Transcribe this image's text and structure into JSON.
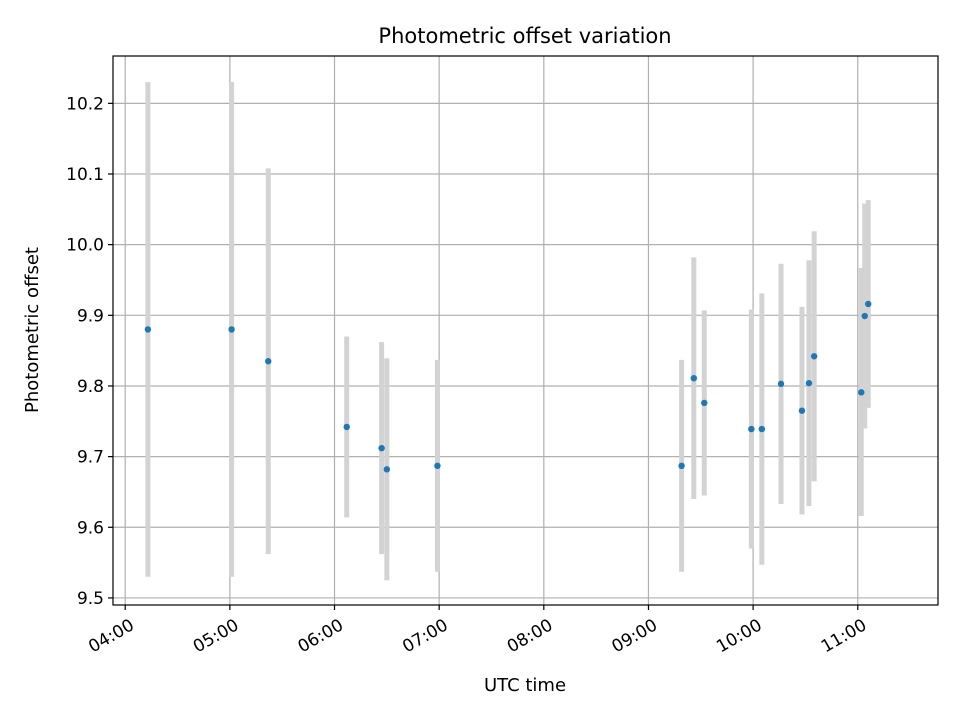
{
  "chart_data": {
    "type": "scatter",
    "title": "Photometric offset variation",
    "xlabel": "UTC time",
    "ylabel": "Photometric offset",
    "x_ticks": [
      "04:00",
      "05:00",
      "06:00",
      "07:00",
      "08:00",
      "09:00",
      "10:00",
      "11:00"
    ],
    "y_ticks": [
      "9.5",
      "9.6",
      "9.7",
      "9.8",
      "9.9",
      "10.0",
      "10.1",
      "10.2"
    ],
    "xlim": [
      "03:53",
      "11:46"
    ],
    "ylim": [
      9.49,
      10.267
    ],
    "grid": true,
    "marker_color": "#1f77b4",
    "errorbar_color": "#d3d3d3",
    "points": [
      {
        "time": "04:13",
        "y": 9.88,
        "yerr_low": 9.53,
        "yerr_high": 10.23
      },
      {
        "time": "05:01",
        "y": 9.88,
        "yerr_low": 9.53,
        "yerr_high": 10.23
      },
      {
        "time": "05:22",
        "y": 9.835,
        "yerr_low": 9.562,
        "yerr_high": 10.108
      },
      {
        "time": "06:07",
        "y": 9.742,
        "yerr_low": 9.614,
        "yerr_high": 9.87
      },
      {
        "time": "06:27",
        "y": 9.712,
        "yerr_low": 9.562,
        "yerr_high": 9.862
      },
      {
        "time": "06:30",
        "y": 9.682,
        "yerr_low": 9.525,
        "yerr_high": 9.839
      },
      {
        "time": "06:59",
        "y": 9.687,
        "yerr_low": 9.537,
        "yerr_high": 9.837
      },
      {
        "time": "09:19",
        "y": 9.687,
        "yerr_low": 9.537,
        "yerr_high": 9.837
      },
      {
        "time": "09:26",
        "y": 9.811,
        "yerr_low": 9.64,
        "yerr_high": 9.982
      },
      {
        "time": "09:32",
        "y": 9.776,
        "yerr_low": 9.645,
        "yerr_high": 9.907
      },
      {
        "time": "09:59",
        "y": 9.739,
        "yerr_low": 9.57,
        "yerr_high": 9.908
      },
      {
        "time": "10:05",
        "y": 9.739,
        "yerr_low": 9.547,
        "yerr_high": 9.931
      },
      {
        "time": "10:16",
        "y": 9.803,
        "yerr_low": 9.633,
        "yerr_high": 9.973
      },
      {
        "time": "10:28",
        "y": 9.765,
        "yerr_low": 9.618,
        "yerr_high": 9.912
      },
      {
        "time": "10:32",
        "y": 9.804,
        "yerr_low": 9.63,
        "yerr_high": 9.978
      },
      {
        "time": "10:35",
        "y": 9.842,
        "yerr_low": 9.665,
        "yerr_high": 10.019
      },
      {
        "time": "11:02",
        "y": 9.791,
        "yerr_low": 9.616,
        "yerr_high": 9.967
      },
      {
        "time": "11:04",
        "y": 9.899,
        "yerr_low": 9.74,
        "yerr_high": 10.058
      },
      {
        "time": "11:06",
        "y": 9.916,
        "yerr_low": 9.769,
        "yerr_high": 10.063
      }
    ]
  }
}
